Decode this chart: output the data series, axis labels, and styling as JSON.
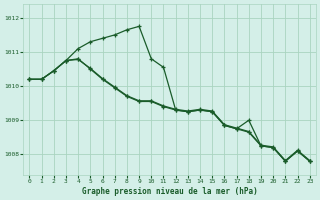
{
  "title": "Graphe pression niveau de la mer (hPa)",
  "background_color": "#d4efe8",
  "grid_color": "#aad4c0",
  "line_color": "#1a5c2a",
  "ylim": [
    1007.4,
    1012.4
  ],
  "yticks": [
    1008,
    1009,
    1010,
    1011,
    1012
  ],
  "xticks": [
    0,
    1,
    2,
    3,
    4,
    5,
    6,
    7,
    8,
    9,
    10,
    11,
    12,
    13,
    14,
    15,
    16,
    17,
    18,
    19,
    20,
    21,
    22,
    23
  ],
  "series1": [
    1010.2,
    1010.2,
    1010.45,
    1010.75,
    1010.8,
    1010.5,
    1010.2,
    1009.95,
    1009.7,
    1009.55,
    1009.55,
    1009.4,
    1009.3,
    1009.25,
    1009.3,
    1009.25,
    1008.85,
    1008.75,
    1008.65,
    1008.25,
    1008.2,
    1007.8,
    1008.1,
    1007.8
  ],
  "series2": [
    1010.2,
    1010.2,
    1010.45,
    1010.75,
    1011.1,
    1011.3,
    1011.4,
    1011.5,
    1011.65,
    1011.75,
    1010.8,
    1010.55,
    1009.3,
    1009.25,
    1009.3,
    1009.25,
    1008.85,
    1008.75,
    1009.0,
    1008.25,
    1008.2,
    1007.8,
    1008.1,
    1007.8
  ],
  "series3": [
    1010.2,
    1010.2,
    1010.45,
    1010.75,
    1010.78,
    1010.52,
    1010.22,
    1009.97,
    1009.72,
    1009.57,
    1009.57,
    1009.42,
    1009.32,
    1009.27,
    1009.32,
    1009.27,
    1008.87,
    1008.77,
    1008.67,
    1008.27,
    1008.22,
    1007.82,
    1008.12,
    1007.82
  ]
}
